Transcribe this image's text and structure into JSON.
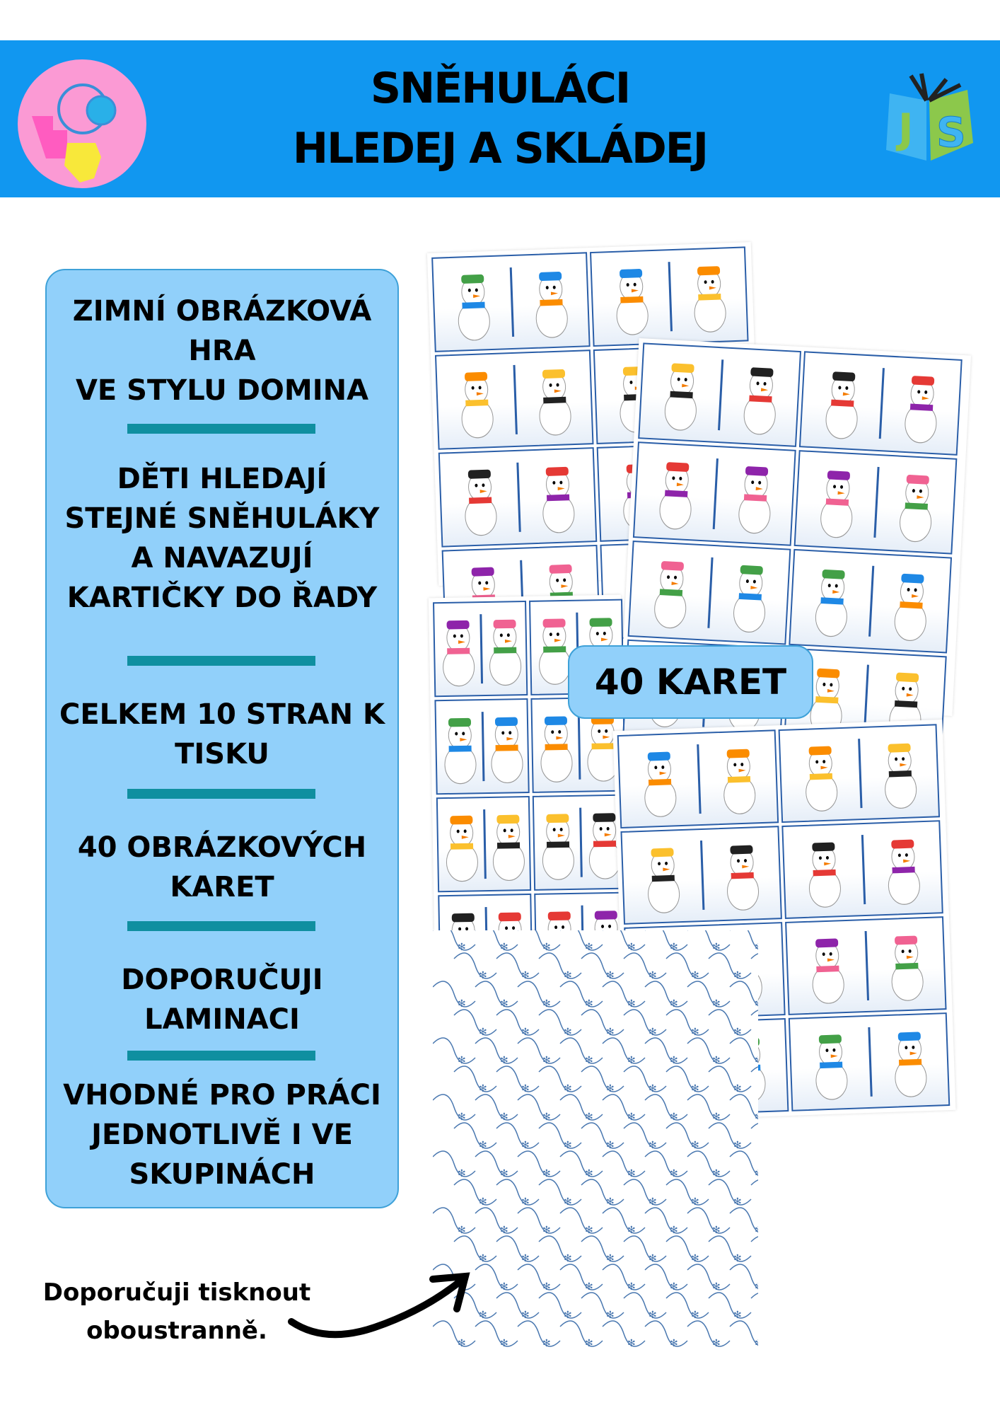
{
  "header": {
    "title_line1": "SNĚHULÁCI",
    "title_line2": "HLEDEJ A SKLÁDEJ",
    "background": "#1197f0",
    "left_logo": "brain-puzzle-logo",
    "right_logo": "book-js-logo",
    "right_logo_text": "JS"
  },
  "panel": {
    "items": [
      {
        "lines": [
          "ZIMNÍ OBRÁZKOVÁ",
          "HRA",
          "VE STYLU DOMINA"
        ]
      },
      {
        "lines": [
          "DĚTI HLEDAJÍ",
          "STEJNÉ SNĚHULÁKY",
          "A NAVAZUJÍ",
          "KARTIČKY DO ŘADY"
        ]
      },
      {
        "lines": [
          "CELKEM 10 STRAN K",
          "TISKU"
        ]
      },
      {
        "lines": [
          "40 OBRÁZKOVÝCH",
          "KARET"
        ]
      },
      {
        "lines": [
          "DOPORUČUJI",
          "LAMINACI"
        ]
      },
      {
        "lines": [
          "VHODNÉ PRO PRÁCI",
          "JEDNOTLIVĚ I VE",
          "SKUPINÁCH"
        ]
      }
    ],
    "background": "#91d0fa",
    "divider_color": "#0f8fa0"
  },
  "badge": {
    "label": "40 KARET"
  },
  "note": {
    "line1": "Doporučuji tisknout",
    "line2": "oboustranně."
  }
}
